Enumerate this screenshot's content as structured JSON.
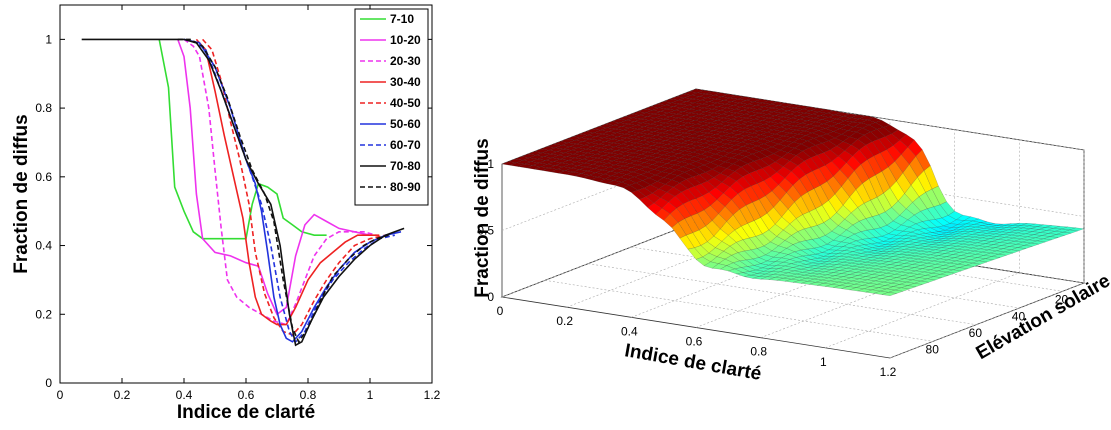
{
  "chart_data": [
    {
      "type": "line",
      "xlabel": "Indice de clarté",
      "ylabel": "Fraction de diffus",
      "xlim": [
        0,
        1.2
      ],
      "ylim": [
        0,
        1.1
      ],
      "xticks": [
        "0",
        "0.2",
        "0.4",
        "0.6",
        "0.8",
        "1",
        "1.2"
      ],
      "yticks": [
        "0",
        "0.2",
        "0.4",
        "0.6",
        "0.8",
        "1"
      ],
      "legend_position": "top-right",
      "series": [
        {
          "name": "7-10",
          "color": "#33dd33",
          "dash": "solid",
          "x": [
            0.32,
            0.35,
            0.37,
            0.4,
            0.43,
            0.46,
            0.5,
            0.53,
            0.55,
            0.58,
            0.6,
            0.62,
            0.64,
            0.67,
            0.7,
            0.72,
            0.75,
            0.78,
            0.82,
            0.86
          ],
          "y": [
            1.0,
            0.86,
            0.57,
            0.5,
            0.44,
            0.42,
            0.42,
            0.42,
            0.42,
            0.42,
            0.42,
            0.52,
            0.58,
            0.57,
            0.55,
            0.48,
            0.46,
            0.44,
            0.43,
            0.43
          ]
        },
        {
          "name": "10-20",
          "color": "#ee33ee",
          "dash": "solid",
          "x": [
            0.38,
            0.4,
            0.42,
            0.44,
            0.46,
            0.5,
            0.55,
            0.6,
            0.64,
            0.67,
            0.7,
            0.73,
            0.76,
            0.79,
            0.82,
            0.86,
            0.9,
            0.95,
            1.0
          ],
          "y": [
            1.0,
            0.95,
            0.8,
            0.55,
            0.42,
            0.38,
            0.37,
            0.35,
            0.34,
            0.26,
            0.2,
            0.22,
            0.37,
            0.46,
            0.49,
            0.47,
            0.45,
            0.44,
            0.43
          ]
        },
        {
          "name": "20-30",
          "color": "#ee33ee",
          "dash": "dashed",
          "x": [
            0.4,
            0.43,
            0.45,
            0.48,
            0.5,
            0.52,
            0.54,
            0.57,
            0.61,
            0.65,
            0.69,
            0.73,
            0.76,
            0.79,
            0.82,
            0.86,
            0.9,
            0.94,
            0.98,
            1.02
          ],
          "y": [
            1.0,
            0.98,
            0.95,
            0.8,
            0.62,
            0.45,
            0.3,
            0.25,
            0.22,
            0.2,
            0.18,
            0.17,
            0.23,
            0.3,
            0.37,
            0.42,
            0.44,
            0.44,
            0.44,
            0.43
          ]
        },
        {
          "name": "30-40",
          "color": "#ee2222",
          "dash": "solid",
          "x": [
            0.44,
            0.47,
            0.5,
            0.53,
            0.56,
            0.59,
            0.61,
            0.63,
            0.65,
            0.68,
            0.7,
            0.73,
            0.76,
            0.8,
            0.84,
            0.88,
            0.92,
            0.96,
            1.0,
            1.03
          ],
          "y": [
            1.0,
            0.97,
            0.85,
            0.72,
            0.6,
            0.48,
            0.35,
            0.25,
            0.2,
            0.18,
            0.17,
            0.17,
            0.22,
            0.3,
            0.35,
            0.38,
            0.41,
            0.43,
            0.43,
            0.43
          ]
        },
        {
          "name": "40-50",
          "color": "#ee2222",
          "dash": "dashed",
          "x": [
            0.46,
            0.49,
            0.52,
            0.55,
            0.58,
            0.61,
            0.63,
            0.66,
            0.69,
            0.72,
            0.75,
            0.78,
            0.82,
            0.86,
            0.9,
            0.95,
            1.0,
            1.05
          ],
          "y": [
            1.0,
            0.97,
            0.88,
            0.76,
            0.65,
            0.52,
            0.38,
            0.26,
            0.19,
            0.15,
            0.14,
            0.17,
            0.24,
            0.3,
            0.35,
            0.4,
            0.42,
            0.43
          ]
        },
        {
          "name": "50-60",
          "color": "#2233dd",
          "dash": "solid",
          "x": [
            0.4,
            0.45,
            0.5,
            0.55,
            0.6,
            0.63,
            0.65,
            0.67,
            0.69,
            0.71,
            0.73,
            0.75,
            0.78,
            0.82,
            0.86,
            0.9,
            0.95,
            1.0,
            1.05,
            1.1
          ],
          "y": [
            1.0,
            0.99,
            0.92,
            0.8,
            0.65,
            0.58,
            0.5,
            0.38,
            0.25,
            0.17,
            0.13,
            0.12,
            0.15,
            0.22,
            0.28,
            0.33,
            0.38,
            0.41,
            0.43,
            0.44
          ]
        },
        {
          "name": "60-70",
          "color": "#2233dd",
          "dash": "dashed",
          "x": [
            0.4,
            0.44,
            0.47,
            0.5,
            0.54,
            0.58,
            0.62,
            0.65,
            0.68,
            0.71,
            0.74,
            0.76,
            0.79,
            0.83,
            0.88,
            0.93,
            0.98,
            1.03,
            1.08
          ],
          "y": [
            1.0,
            0.99,
            0.97,
            0.9,
            0.8,
            0.7,
            0.6,
            0.52,
            0.4,
            0.25,
            0.15,
            0.12,
            0.15,
            0.23,
            0.3,
            0.35,
            0.39,
            0.42,
            0.43
          ]
        },
        {
          "name": "70-80",
          "color": "#111111",
          "dash": "solid",
          "x": [
            0.07,
            0.2,
            0.3,
            0.4,
            0.44,
            0.48,
            0.52,
            0.56,
            0.6,
            0.64,
            0.68,
            0.71,
            0.74,
            0.76,
            0.78,
            0.81,
            0.85,
            0.9,
            0.95,
            1.0,
            1.05,
            1.08,
            1.11
          ],
          "y": [
            1.0,
            1.0,
            1.0,
            1.0,
            0.99,
            0.94,
            0.85,
            0.75,
            0.65,
            0.58,
            0.52,
            0.4,
            0.2,
            0.11,
            0.12,
            0.18,
            0.25,
            0.31,
            0.36,
            0.4,
            0.43,
            0.44,
            0.45
          ]
        },
        {
          "name": "80-90",
          "color": "#111111",
          "dash": "dashed",
          "x": [
            0.38,
            0.42,
            0.46,
            0.5,
            0.54,
            0.58,
            0.62,
            0.66,
            0.69,
            0.72,
            0.75,
            0.77,
            0.8,
            0.84,
            0.88,
            0.93,
            0.98,
            1.02,
            1.06
          ],
          "y": [
            1.0,
            1.0,
            0.98,
            0.92,
            0.83,
            0.72,
            0.62,
            0.55,
            0.47,
            0.3,
            0.16,
            0.12,
            0.16,
            0.24,
            0.31,
            0.36,
            0.4,
            0.42,
            0.43
          ]
        }
      ]
    },
    {
      "type": "surface3d",
      "xlabel": "Indice de clarté",
      "ylabel": "Elévation solaire",
      "zlabel": "Fraction de diffus",
      "xlim": [
        0,
        1.2
      ],
      "ylim": [
        0,
        90
      ],
      "zlim": [
        0,
        1
      ],
      "xticks": [
        "0",
        "0.2",
        "0.4",
        "0.6",
        "0.8",
        "1",
        "1.2"
      ],
      "yticks": [
        "20",
        "40",
        "60",
        "80"
      ],
      "zticks": [
        "0",
        "0.5",
        "1"
      ],
      "colormap": "jet"
    }
  ]
}
